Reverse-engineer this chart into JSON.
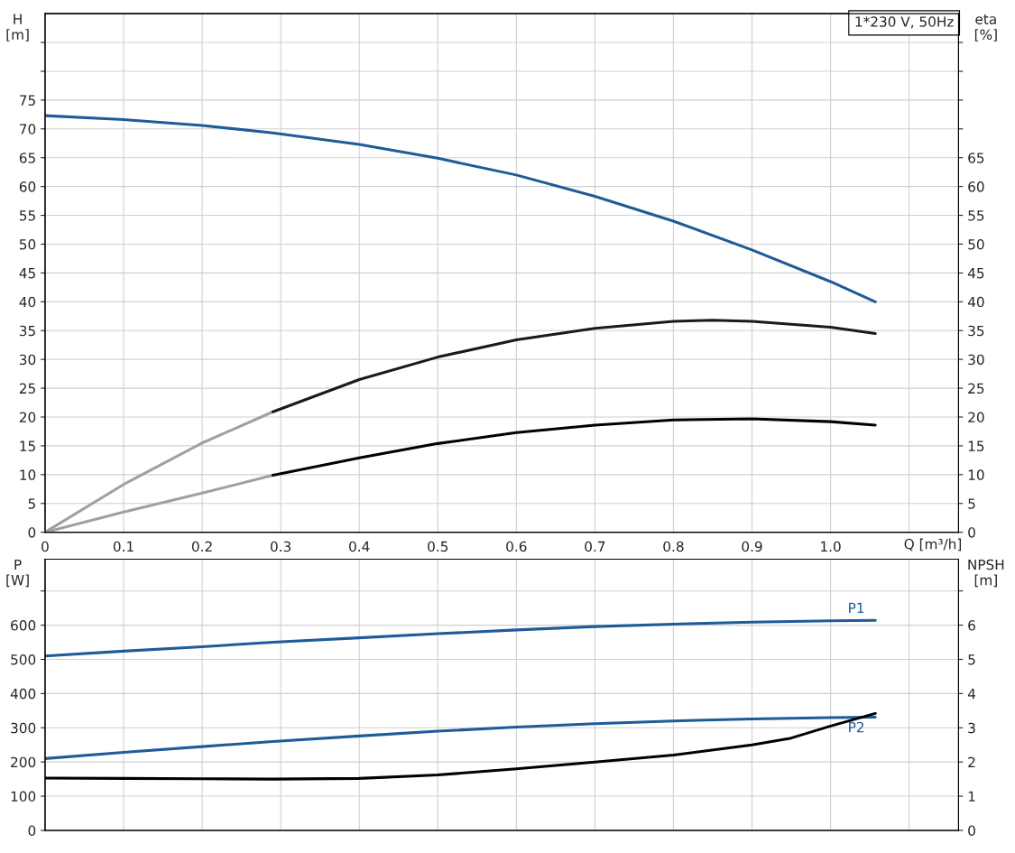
{
  "chart_data": [
    {
      "type": "line",
      "title": "1*230 V, 50Hz",
      "xlabel": "Q [m³/h]",
      "ylabel": "H\n[m]",
      "y2label": "eta\n[%]",
      "xlim": [
        0,
        1.163
      ],
      "xticks": [
        0,
        0.1,
        0.2,
        0.3,
        0.4,
        0.5,
        0.6,
        0.7,
        0.8,
        0.9,
        {
          "value": 1.0,
          "label": "1.0"
        },
        {
          "value": 1.1,
          "label": null
        }
      ],
      "ylim": [
        0,
        90
      ],
      "yticks": [
        0,
        5,
        10,
        15,
        20,
        25,
        30,
        35,
        40,
        45,
        50,
        55,
        60,
        65,
        70,
        75,
        {
          "value": 80,
          "label": null
        },
        {
          "value": 85,
          "label": null
        }
      ],
      "y2lim": [
        0,
        90
      ],
      "y2ticks": [
        0,
        5,
        10,
        15,
        20,
        25,
        30,
        35,
        40,
        45,
        50,
        55,
        60,
        65,
        {
          "value": 70,
          "label": null
        },
        {
          "value": 75,
          "label": null
        },
        {
          "value": 80,
          "label": null
        },
        {
          "value": 85,
          "label": null
        }
      ],
      "grid": true,
      "legend": false,
      "series": [
        {
          "color": "#1f5b99",
          "x": [
            0,
            0.1,
            0.2,
            0.29,
            0.4,
            0.5,
            0.6,
            0.7,
            0.8,
            0.9,
            1.0,
            1.057
          ],
          "values": [
            72.3,
            71.6,
            70.6,
            69.3,
            67.3,
            64.9,
            62.0,
            58.3,
            54.0,
            49.0,
            43.5,
            40.0
          ]
        },
        {
          "color": "#a0a0a0",
          "axis": "y2",
          "x": [
            0,
            0.1,
            0.2,
            0.29
          ],
          "values": [
            0,
            8.3,
            15.5,
            20.9
          ]
        },
        {
          "color": "#1a1a1a",
          "axis": "y2",
          "x": [
            0.29,
            0.4,
            0.5,
            0.6,
            0.7,
            0.8,
            0.85,
            0.9,
            1.0,
            1.057
          ],
          "values": [
            20.9,
            26.5,
            30.4,
            33.4,
            35.4,
            36.6,
            36.8,
            36.6,
            35.6,
            34.5
          ]
        },
        {
          "color": "#a0a0a0",
          "axis": "y2",
          "x": [
            0,
            0.1,
            0.2,
            0.29
          ],
          "values": [
            0,
            3.5,
            6.8,
            9.9
          ]
        },
        {
          "color": "#000000",
          "axis": "y2",
          "x": [
            0.29,
            0.4,
            0.5,
            0.6,
            0.7,
            0.8,
            0.9,
            1.0,
            1.057
          ],
          "values": [
            9.9,
            12.9,
            15.4,
            17.3,
            18.6,
            19.5,
            19.7,
            19.2,
            18.6
          ]
        }
      ]
    },
    {
      "type": "line",
      "ylabel": "P\n[W]",
      "y2label": "NPSH\n[m]",
      "xlim": [
        0,
        1.163
      ],
      "xticks": [
        0,
        0.1,
        0.2,
        0.3,
        0.4,
        0.5,
        0.6,
        0.7,
        0.8,
        0.9,
        1.0,
        1.1
      ],
      "tick_labels": "y",
      "ylim": [
        0,
        793
      ],
      "yticks": [
        0,
        100,
        200,
        300,
        400,
        500,
        600,
        {
          "value": 700,
          "label": null
        }
      ],
      "y2lim": [
        0,
        7.93
      ],
      "y2ticks": [
        0,
        1,
        2,
        3,
        4,
        5,
        6,
        {
          "value": 7,
          "label": null
        }
      ],
      "grid": true,
      "legend": false,
      "series": [
        {
          "name": "P1",
          "color": "#1f5b99",
          "x": [
            0,
            0.1,
            0.2,
            0.29,
            0.4,
            0.5,
            0.6,
            0.7,
            0.8,
            0.9,
            1.0,
            1.057
          ],
          "values": [
            510,
            524,
            537,
            550,
            563,
            575,
            586,
            596,
            603,
            609,
            613,
            614
          ]
        },
        {
          "name": "P2",
          "color": "#1f5b99",
          "x": [
            0,
            0.1,
            0.2,
            0.29,
            0.4,
            0.5,
            0.6,
            0.7,
            0.8,
            0.9,
            1.0,
            1.057
          ],
          "values": [
            210,
            228,
            245,
            260,
            276,
            290,
            302,
            312,
            320,
            326,
            330,
            331
          ]
        },
        {
          "color": "#000000",
          "axis": "y2",
          "x": [
            0,
            0.1,
            0.2,
            0.29,
            0.4,
            0.5,
            0.6,
            0.7,
            0.8,
            0.9,
            0.95,
            1.0,
            1.057
          ],
          "values": [
            1.53,
            1.52,
            1.51,
            1.5,
            1.52,
            1.62,
            1.8,
            2.0,
            2.2,
            2.5,
            2.7,
            3.05,
            3.42
          ]
        }
      ]
    }
  ]
}
